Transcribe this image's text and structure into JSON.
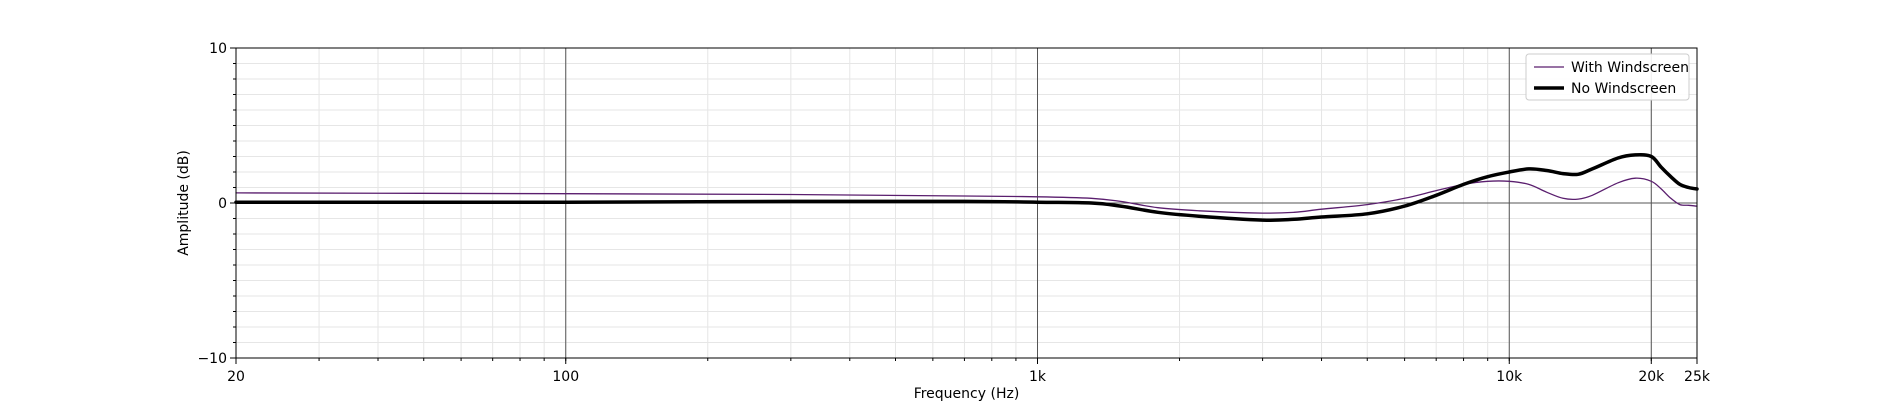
{
  "chart_data": {
    "type": "line",
    "xscale": "log",
    "xlim": [
      20,
      25000
    ],
    "ylim": [
      -10,
      10
    ],
    "xlabel": "Frequency (Hz)",
    "ylabel": "Amplitude (dB)",
    "xticks": [
      {
        "value": 20,
        "label": "20"
      },
      {
        "value": 100,
        "label": "100"
      },
      {
        "value": 1000,
        "label": "1k"
      },
      {
        "value": 10000,
        "label": "10k"
      },
      {
        "value": 20000,
        "label": "20k"
      },
      {
        "value": 25000,
        "label": "25k"
      }
    ],
    "yticks": [
      {
        "value": -10,
        "label": "−10"
      },
      {
        "value": 0,
        "label": "0"
      },
      {
        "value": 10,
        "label": "10"
      }
    ],
    "grid": true,
    "legend_position": "top-right",
    "series": [
      {
        "name": "With Windscreen",
        "color": "#5a1e6e",
        "style": "thin",
        "x": [
          20,
          100,
          300,
          700,
          1000,
          1300,
          1500,
          1800,
          2200,
          3000,
          3500,
          4000,
          5000,
          6000,
          7000,
          8000,
          9000,
          10000,
          11000,
          12000,
          13000,
          14000,
          15000,
          17000,
          18500,
          20000,
          21000,
          22000,
          23000,
          24000,
          25000
        ],
        "y": [
          0.65,
          0.6,
          0.55,
          0.45,
          0.4,
          0.3,
          0.1,
          -0.3,
          -0.5,
          -0.65,
          -0.6,
          -0.4,
          -0.1,
          0.3,
          0.8,
          1.2,
          1.4,
          1.4,
          1.2,
          0.7,
          0.3,
          0.25,
          0.5,
          1.3,
          1.6,
          1.4,
          0.9,
          0.3,
          -0.1,
          -0.15,
          -0.2
        ]
      },
      {
        "name": "No Windscreen",
        "color": "#000000",
        "style": "thick",
        "x": [
          20,
          100,
          300,
          700,
          1000,
          1300,
          1500,
          1800,
          2200,
          3000,
          3500,
          4000,
          5000,
          6000,
          7000,
          8000,
          9000,
          10000,
          11000,
          12000,
          13000,
          14000,
          15000,
          17000,
          18500,
          20000,
          21000,
          22000,
          23000,
          24000,
          25000
        ],
        "y": [
          0.05,
          0.05,
          0.1,
          0.1,
          0.05,
          0.0,
          -0.2,
          -0.6,
          -0.85,
          -1.1,
          -1.05,
          -0.9,
          -0.7,
          -0.2,
          0.5,
          1.2,
          1.7,
          2.0,
          2.2,
          2.1,
          1.9,
          1.85,
          2.2,
          2.9,
          3.1,
          3.0,
          2.3,
          1.7,
          1.2,
          1.0,
          0.9
        ]
      }
    ]
  }
}
